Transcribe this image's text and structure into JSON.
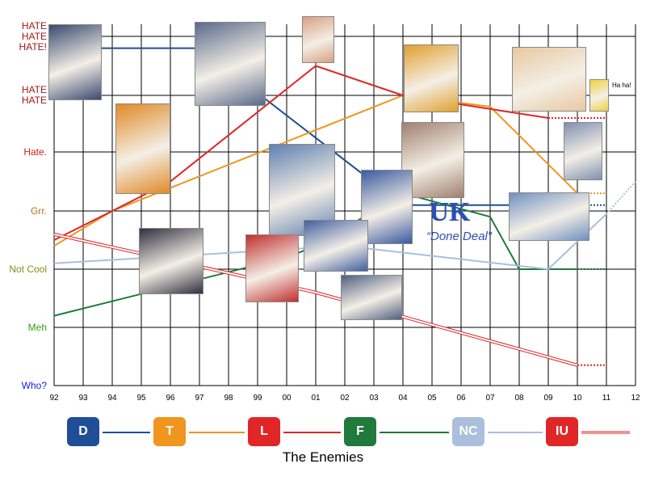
{
  "chart_data": {
    "type": "line",
    "title": "",
    "xlabel": "The Enemies",
    "ylabel": "",
    "x_ticks": [
      "92",
      "93",
      "94",
      "95",
      "96",
      "97",
      "98",
      "99",
      "00",
      "01",
      "02",
      "03",
      "04",
      "05",
      "06",
      "07",
      "08",
      "09",
      "10",
      "11",
      "12"
    ],
    "y_levels": [
      "Who?",
      "Meh",
      "Not Cool",
      "Grr.",
      "Hate.",
      "HATE\nHATE",
      "HATE\nHATE\nHATE!"
    ],
    "y_level_colors": [
      "#1a1ad8",
      "#3a9a1a",
      "#8a8a1a",
      "#b0731a",
      "#d02020",
      "#a01818",
      "#a01818"
    ],
    "grid": true,
    "legend_position": "bottom",
    "series": [
      {
        "name": "Duke",
        "color": "#1f4e96",
        "points": [
          [
            1992,
            5.8
          ],
          [
            1997,
            5.8
          ],
          [
            2004,
            3.1
          ],
          [
            2006,
            3.1
          ],
          [
            2010,
            3.1
          ]
        ],
        "dotted_to": [
          2011,
          3.1
        ]
      },
      {
        "name": "Tennessee",
        "color": "#f0951e",
        "points": [
          [
            1992,
            2.4
          ],
          [
            1994,
            3.0
          ],
          [
            2004,
            5.0
          ],
          [
            2007,
            4.8
          ],
          [
            2010,
            3.3
          ]
        ],
        "dotted_to": [
          2011,
          3.3
        ]
      },
      {
        "name": "Louisville",
        "color": "#e02626",
        "points": [
          [
            1992,
            2.5
          ],
          [
            1994,
            3.0
          ],
          [
            1996,
            3.5
          ],
          [
            2001,
            5.5
          ],
          [
            2004,
            5.0
          ],
          [
            2009,
            4.6
          ]
        ],
        "dotted_to": [
          2011,
          4.6
        ]
      },
      {
        "name": "Florida",
        "color": "#1f7a3c",
        "points": [
          [
            1992,
            1.2
          ],
          [
            2000,
            2.2
          ],
          [
            2001,
            2.4
          ],
          [
            2004,
            3.3
          ],
          [
            2007,
            2.9
          ],
          [
            2008,
            2.0
          ],
          [
            2010,
            2.0
          ]
        ],
        "dotted_to": [
          2011,
          2.0
        ]
      },
      {
        "name": "North Carolina",
        "color": "#aabfdb",
        "points": [
          [
            1992,
            2.1
          ],
          [
            2002,
            2.4
          ],
          [
            2009,
            2.0
          ],
          [
            2011,
            2.95
          ]
        ],
        "dotted_to": [
          2012,
          3.5
        ]
      },
      {
        "name": "Indiana",
        "color": "#e02626",
        "points": [
          [
            1992,
            2.6
          ],
          [
            2001,
            1.6
          ],
          [
            2010,
            0.35
          ]
        ],
        "dotted_to": [
          2011,
          0.35
        ]
      }
    ],
    "annotations": [
      {
        "text": "“Done Deal”",
        "at": [
          2005.5,
          2.5
        ],
        "color": "#2a4fb8"
      },
      {
        "text": "Ha ha!",
        "at": [
          2011.5,
          5.1
        ]
      }
    ]
  },
  "legend": [
    {
      "name": "duke-logo",
      "color": "#1f4e96",
      "text": "D"
    },
    {
      "name": "tennessee-logo",
      "color": "#f0951e",
      "text": "T"
    },
    {
      "name": "louisville-logo",
      "color": "#e02626",
      "text": "L"
    },
    {
      "name": "florida-logo",
      "color": "#1f7a3c",
      "text": "F"
    },
    {
      "name": "north-carolina-logo",
      "color": "#aabfdb",
      "text": "NC"
    },
    {
      "name": "indiana-logo",
      "color": "#e02626",
      "text": "IU"
    }
  ],
  "photos": [
    {
      "name": "duke-shooter-photo",
      "color": "#3a4a70"
    },
    {
      "name": "duke-celebration-photo",
      "color": "#5a6a8a"
    },
    {
      "name": "louisville-coach-head-photo",
      "color": "#d8a080"
    },
    {
      "name": "tennessee-guard-photo",
      "color": "#e08a28"
    },
    {
      "name": "tennessee-fans-photo",
      "color": "#e0a030"
    },
    {
      "name": "blonde-woman-photo",
      "color": "#e8c8a0"
    },
    {
      "name": "cartoon-laughing-photo",
      "color": "#f0d040"
    },
    {
      "name": "tennessee-coach-photo",
      "color": "#8090b0"
    },
    {
      "name": "duke-magazine-photo",
      "color": "#6080b0"
    },
    {
      "name": "florida-net-cutting-photo",
      "color": "#a08070"
    },
    {
      "name": "florida-player-photo",
      "color": "#3a5aa0"
    },
    {
      "name": "florida-player-2-photo",
      "color": "#4060a0"
    },
    {
      "name": "unc-celebration-photo",
      "color": "#7090c0"
    },
    {
      "name": "florida-coach-photo",
      "color": "#303040"
    },
    {
      "name": "indiana-coach-photo",
      "color": "#c03030"
    },
    {
      "name": "unc-coach-photo",
      "color": "#506080"
    }
  ],
  "kentucky_logo": {
    "text": "UK",
    "color": "#2a4fb8"
  },
  "haha_text": "Ha ha!"
}
